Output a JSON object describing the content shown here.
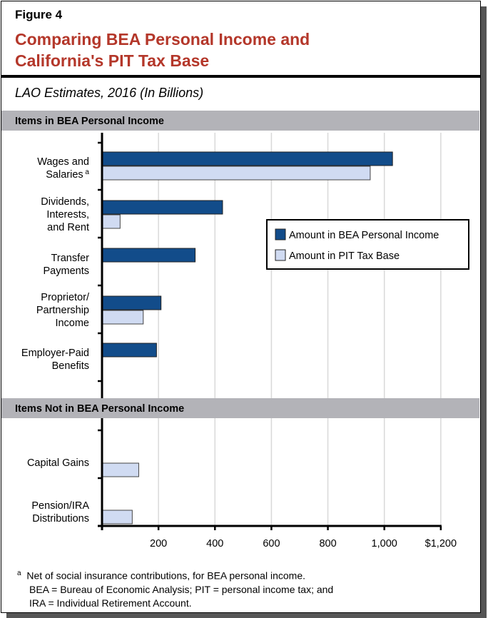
{
  "figure_label": "Figure 4",
  "title_lines": [
    "Comparing BEA Personal Income and",
    "California's PIT Tax Base"
  ],
  "subtitle": "LAO Estimates, 2016 (In Billions)",
  "colors": {
    "title": "#b4372a",
    "bea": "#124c8a",
    "pit": "#d0dbf2",
    "band": "#b3b3b8",
    "grid": "#d9d9d9"
  },
  "chart_data": {
    "type": "bar",
    "orientation": "horizontal",
    "xlim": [
      0,
      1200
    ],
    "x_ticks": [
      "200",
      "400",
      "600",
      "800",
      "1,000",
      "$1,200"
    ],
    "grid": true,
    "legend_placement": "right-center",
    "sections": [
      {
        "label": "Items in BEA Personal Income",
        "categories": [
          {
            "label": [
              "Wages and",
              "Salaries"
            ],
            "footnote_mark": "a",
            "bea": 1029,
            "pit": 950
          },
          {
            "label": [
              "Dividends,",
              "Interests,",
              "and Rent"
            ],
            "bea": 427,
            "pit": 64
          },
          {
            "label": [
              "Transfer",
              "Payments"
            ],
            "bea": 330,
            "pit": null
          },
          {
            "label": [
              "Proprietor/",
              "Partnership",
              "Income"
            ],
            "bea": 209,
            "pit": 146
          },
          {
            "label": [
              "Employer-Paid",
              "Benefits"
            ],
            "bea": 193,
            "pit": null
          }
        ]
      },
      {
        "label": "Items Not in BEA Personal Income",
        "categories": [
          {
            "label": [
              "Capital Gains"
            ],
            "bea": null,
            "pit": 130
          },
          {
            "label": [
              "Pension/IRA",
              "Distributions"
            ],
            "bea": null,
            "pit": 107
          }
        ]
      }
    ],
    "series": [
      {
        "name": "Amount in BEA Personal Income",
        "key": "bea"
      },
      {
        "name": "Amount in PIT Tax Base",
        "key": "pit"
      }
    ]
  },
  "footnote": {
    "mark": "a",
    "lines": [
      "Net of social insurance contributions, for BEA personal income.",
      "BEA = Bureau of Economic Analysis; PIT = personal income tax; and",
      "IRA = Individual Retirement Account."
    ]
  }
}
